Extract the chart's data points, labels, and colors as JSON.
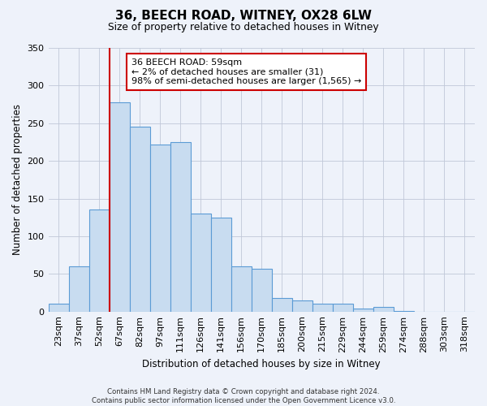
{
  "title": "36, BEECH ROAD, WITNEY, OX28 6LW",
  "subtitle": "Size of property relative to detached houses in Witney",
  "xlabel": "Distribution of detached houses by size in Witney",
  "ylabel": "Number of detached properties",
  "categories": [
    "23sqm",
    "37sqm",
    "52sqm",
    "67sqm",
    "82sqm",
    "97sqm",
    "111sqm",
    "126sqm",
    "141sqm",
    "156sqm",
    "170sqm",
    "185sqm",
    "200sqm",
    "215sqm",
    "229sqm",
    "244sqm",
    "259sqm",
    "274sqm",
    "288sqm",
    "303sqm",
    "318sqm"
  ],
  "values": [
    10,
    60,
    135,
    278,
    245,
    222,
    225,
    130,
    125,
    60,
    57,
    18,
    15,
    10,
    10,
    4,
    6,
    1,
    0,
    0,
    0
  ],
  "bar_color": "#c8dcf0",
  "bar_edge_color": "#5b9bd5",
  "vline_index": 2,
  "vline_color": "#cc0000",
  "ylim": [
    0,
    350
  ],
  "yticks": [
    0,
    50,
    100,
    150,
    200,
    250,
    300,
    350
  ],
  "annotation_line1": "36 BEECH ROAD: 59sqm",
  "annotation_line2": "← 2% of detached houses are smaller (31)",
  "annotation_line3": "98% of semi-detached houses are larger (1,565) →",
  "annotation_box_color": "#ffffff",
  "annotation_box_edge": "#cc0000",
  "footer1": "Contains HM Land Registry data © Crown copyright and database right 2024.",
  "footer2": "Contains public sector information licensed under the Open Government Licence v3.0.",
  "background_color": "#eef2fa"
}
